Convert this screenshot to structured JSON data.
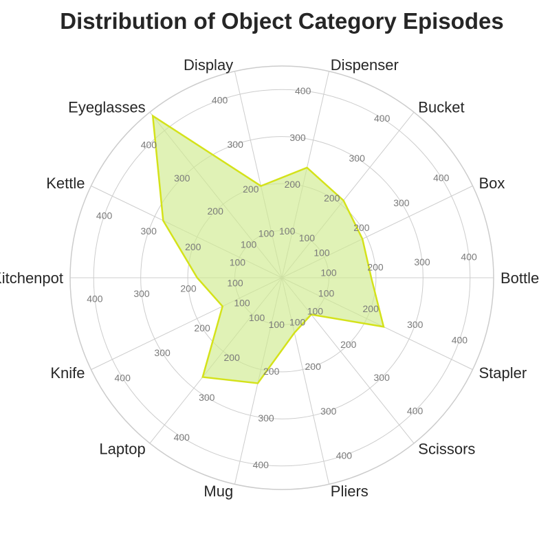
{
  "chart_data": {
    "type": "radar",
    "title": "Distribution of Object Category Episodes",
    "categories": [
      "Bottle",
      "Box",
      "Bucket",
      "Dispenser",
      "Display",
      "Eyeglasses",
      "Kettle",
      "Kitchenpot",
      "Knife",
      "Laptop",
      "Mug",
      "Pliers",
      "Scissors",
      "Stapler"
    ],
    "series": [
      {
        "values": [
          190,
          190,
          210,
          240,
          200,
          440,
          280,
          180,
          140,
          270,
          230,
          120,
          100,
          240
        ]
      }
    ],
    "radial_ticks": [
      100,
      200,
      300,
      400
    ],
    "rlim": [
      0,
      450
    ],
    "grid": true,
    "colors": {
      "line": "#d4e21a",
      "fill": "#cfeb8f",
      "grid": "#cccccc",
      "title": "#262626",
      "label": "#262626",
      "tick": "#7a7a7a"
    }
  }
}
